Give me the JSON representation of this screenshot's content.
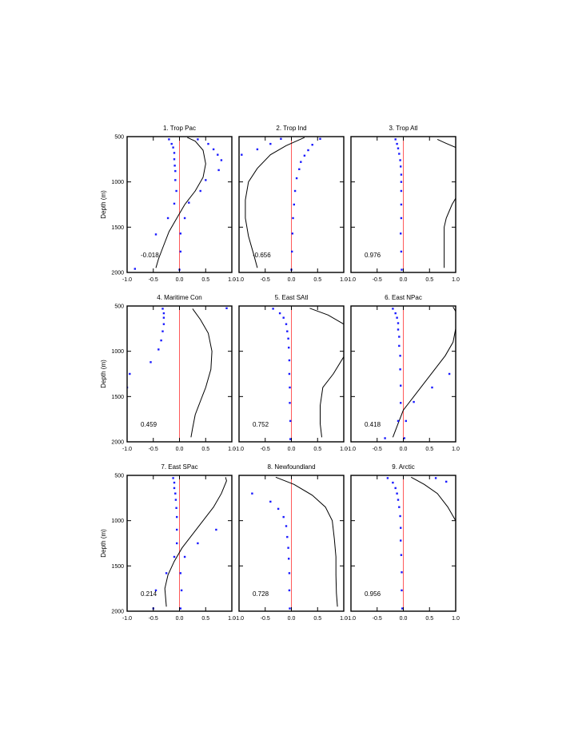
{
  "figure": {
    "ylabel": "Depth (m)",
    "colors": {
      "zero_line": "#ff5a5a",
      "dots": "#1a1aff",
      "curve": "#000000",
      "axes": "#000000"
    }
  },
  "chart_data": [
    {
      "type": "scatter",
      "title": "1. Trop Pac",
      "correlation": "-0.018",
      "xlim": [
        -1.0,
        1.0
      ],
      "ylim": [
        500,
        2000
      ],
      "xticks": [
        "-1.0",
        "-0.5",
        "0.0",
        "0.5",
        "1.0"
      ],
      "yticks": [
        "500",
        "1000",
        "1500",
        "2000"
      ],
      "dots": [
        [
          -0.2,
          530
        ],
        [
          -0.15,
          580
        ],
        [
          -0.12,
          620
        ],
        [
          -0.1,
          680
        ],
        [
          -0.1,
          750
        ],
        [
          -0.09,
          820
        ],
        [
          -0.08,
          880
        ],
        [
          -0.08,
          980
        ],
        [
          -0.06,
          1100
        ],
        [
          -0.1,
          1240
        ],
        [
          -0.22,
          1400
        ],
        [
          -0.45,
          1580
        ],
        [
          -0.85,
          1960
        ],
        [
          0.35,
          530
        ],
        [
          0.55,
          580
        ],
        [
          0.65,
          640
        ],
        [
          0.73,
          700
        ],
        [
          0.8,
          760
        ],
        [
          0.75,
          870
        ],
        [
          0.5,
          980
        ],
        [
          0.4,
          1100
        ],
        [
          0.18,
          1230
        ],
        [
          0.1,
          1400
        ],
        [
          0.02,
          1570
        ],
        [
          0.02,
          1770
        ],
        [
          0.0,
          1970
        ]
      ],
      "curve": [
        [
          0.15,
          510
        ],
        [
          0.3,
          550
        ],
        [
          0.45,
          650
        ],
        [
          0.5,
          800
        ],
        [
          0.45,
          950
        ],
        [
          0.3,
          1100
        ],
        [
          0.1,
          1250
        ],
        [
          -0.05,
          1400
        ],
        [
          -0.2,
          1550
        ],
        [
          -0.3,
          1700
        ],
        [
          -0.4,
          1850
        ],
        [
          -0.45,
          1950
        ]
      ]
    },
    {
      "type": "scatter",
      "title": "2. Trop Ind",
      "correlation": "-0.656",
      "xlim": [
        -1.0,
        1.0
      ],
      "ylim": [
        500,
        2000
      ],
      "xticks": [
        "-1.0",
        "-0.5",
        "0.0",
        "0.5",
        "1.0"
      ],
      "yticks": [
        "500",
        "1000",
        "1500",
        "2000"
      ],
      "dots": [
        [
          -0.2,
          525
        ],
        [
          -0.4,
          580
        ],
        [
          -0.65,
          640
        ],
        [
          -0.95,
          700
        ],
        [
          0.55,
          525
        ],
        [
          0.4,
          590
        ],
        [
          0.32,
          650
        ],
        [
          0.25,
          710
        ],
        [
          0.18,
          780
        ],
        [
          0.15,
          860
        ],
        [
          0.1,
          960
        ],
        [
          0.07,
          1100
        ],
        [
          0.05,
          1250
        ],
        [
          0.03,
          1400
        ],
        [
          0.02,
          1570
        ],
        [
          0.01,
          1770
        ],
        [
          0.0,
          1970
        ]
      ],
      "curve": [
        [
          0.25,
          510
        ],
        [
          -0.1,
          600
        ],
        [
          -0.4,
          700
        ],
        [
          -0.65,
          850
        ],
        [
          -0.82,
          1000
        ],
        [
          -0.88,
          1200
        ],
        [
          -0.88,
          1400
        ],
        [
          -0.82,
          1600
        ],
        [
          -0.72,
          1800
        ],
        [
          -0.65,
          1950
        ]
      ]
    },
    {
      "type": "scatter",
      "title": "3. Trop Atl",
      "correlation": "0.976",
      "xlim": [
        -1.0,
        1.0
      ],
      "ylim": [
        500,
        2000
      ],
      "xticks": [
        "-1.0",
        "-0.5",
        "0.0",
        "0.5",
        "1.0"
      ],
      "yticks": [
        "500",
        "1000",
        "1500",
        "2000"
      ],
      "dots": [
        [
          -0.15,
          530
        ],
        [
          -0.12,
          580
        ],
        [
          -0.1,
          630
        ],
        [
          -0.08,
          690
        ],
        [
          -0.06,
          760
        ],
        [
          -0.05,
          830
        ],
        [
          -0.04,
          920
        ],
        [
          -0.04,
          1000
        ],
        [
          -0.04,
          1100
        ],
        [
          -0.04,
          1250
        ],
        [
          -0.04,
          1400
        ],
        [
          -0.05,
          1570
        ],
        [
          -0.04,
          1770
        ],
        [
          -0.03,
          1970
        ]
      ],
      "curve": [
        [
          0.65,
          530
        ],
        [
          0.8,
          570
        ],
        [
          1.0,
          620
        ]
      ],
      "curve2": [
        [
          1.0,
          1180
        ],
        [
          0.93,
          1250
        ],
        [
          0.82,
          1400
        ],
        [
          0.78,
          1500
        ],
        [
          0.78,
          1700
        ],
        [
          0.78,
          1950
        ]
      ]
    },
    {
      "type": "scatter",
      "title": "4. Maritime Con",
      "correlation": "0.459",
      "xlim": [
        -1.0,
        1.0
      ],
      "ylim": [
        500,
        2000
      ],
      "xticks": [
        "-1.0",
        "-0.5",
        "0.0",
        "0.5",
        "1.0"
      ],
      "yticks": [
        "500",
        "1000",
        "1500",
        "2000"
      ],
      "dots": [
        [
          -0.32,
          530
        ],
        [
          -0.3,
          580
        ],
        [
          -0.3,
          630
        ],
        [
          -0.3,
          700
        ],
        [
          -0.32,
          780
        ],
        [
          -0.35,
          880
        ],
        [
          -0.4,
          980
        ],
        [
          -0.55,
          1120
        ],
        [
          -0.95,
          1250
        ],
        [
          -1.0,
          1400
        ],
        [
          0.9,
          525
        ]
      ],
      "curve": [
        [
          0.25,
          530
        ],
        [
          0.4,
          650
        ],
        [
          0.55,
          800
        ],
        [
          0.62,
          1000
        ],
        [
          0.6,
          1200
        ],
        [
          0.5,
          1400
        ],
        [
          0.4,
          1550
        ],
        [
          0.3,
          1700
        ],
        [
          0.25,
          1850
        ],
        [
          0.22,
          1950
        ]
      ]
    },
    {
      "type": "scatter",
      "title": "5. East SAtl",
      "correlation": "0.752",
      "xlim": [
        -1.0,
        1.0
      ],
      "ylim": [
        500,
        2000
      ],
      "xticks": [
        "-1.0",
        "-0.5",
        "0.0",
        "0.5",
        "1.0"
      ],
      "yticks": [
        "500",
        "1000",
        "1500",
        "2000"
      ],
      "dots": [
        [
          -0.35,
          530
        ],
        [
          -0.22,
          580
        ],
        [
          -0.15,
          630
        ],
        [
          -0.1,
          700
        ],
        [
          -0.08,
          780
        ],
        [
          -0.06,
          860
        ],
        [
          -0.05,
          960
        ],
        [
          -0.04,
          1100
        ],
        [
          -0.04,
          1250
        ],
        [
          -0.03,
          1400
        ],
        [
          -0.03,
          1570
        ],
        [
          -0.02,
          1770
        ],
        [
          -0.02,
          1970
        ]
      ],
      "curve": [
        [
          0.35,
          525
        ],
        [
          0.7,
          600
        ],
        [
          1.0,
          700
        ]
      ],
      "curve2": [
        [
          1.0,
          1060
        ],
        [
          0.8,
          1250
        ],
        [
          0.6,
          1400
        ],
        [
          0.55,
          1600
        ],
        [
          0.55,
          1800
        ],
        [
          0.58,
          1950
        ]
      ]
    },
    {
      "type": "scatter",
      "title": "6. East NPac",
      "correlation": "0.418",
      "xlim": [
        -1.0,
        1.0
      ],
      "ylim": [
        500,
        2000
      ],
      "xticks": [
        "-1.0",
        "-0.5",
        "0.0",
        "0.5",
        "1.0"
      ],
      "yticks": [
        "500",
        "1000",
        "1500",
        "2000"
      ],
      "dots": [
        [
          -0.2,
          530
        ],
        [
          -0.15,
          580
        ],
        [
          -0.12,
          630
        ],
        [
          -0.1,
          690
        ],
        [
          -0.1,
          760
        ],
        [
          -0.08,
          840
        ],
        [
          -0.08,
          940
        ],
        [
          -0.06,
          1050
        ],
        [
          -0.06,
          1200
        ],
        [
          -0.05,
          1380
        ],
        [
          -0.05,
          1570
        ],
        [
          -0.1,
          1770
        ],
        [
          -0.35,
          1960
        ],
        [
          0.88,
          1250
        ],
        [
          0.55,
          1400
        ],
        [
          0.2,
          1560
        ],
        [
          0.05,
          1770
        ],
        [
          0.02,
          1960
        ]
      ],
      "curve": [
        [
          0.95,
          510
        ],
        [
          1.0,
          560
        ],
        [
          1.0,
          750
        ],
        [
          0.95,
          900
        ],
        [
          0.8,
          1050
        ],
        [
          0.6,
          1200
        ],
        [
          0.4,
          1350
        ],
        [
          0.2,
          1500
        ],
        [
          0.0,
          1650
        ],
        [
          -0.1,
          1800
        ],
        [
          -0.2,
          1950
        ]
      ]
    },
    {
      "type": "scatter",
      "title": "7. East SPac",
      "correlation": "0.214",
      "xlim": [
        -1.0,
        1.0
      ],
      "ylim": [
        500,
        2000
      ],
      "xticks": [
        "-1.0",
        "-0.5",
        "0.0",
        "0.5",
        "1.0"
      ],
      "yticks": [
        "500",
        "1000",
        "1500",
        "2000"
      ],
      "dots": [
        [
          -0.12,
          530
        ],
        [
          -0.1,
          580
        ],
        [
          -0.1,
          640
        ],
        [
          -0.08,
          700
        ],
        [
          -0.07,
          770
        ],
        [
          -0.06,
          860
        ],
        [
          -0.05,
          960
        ],
        [
          -0.05,
          1100
        ],
        [
          -0.05,
          1250
        ],
        [
          -0.1,
          1400
        ],
        [
          -0.25,
          1580
        ],
        [
          -0.45,
          1770
        ],
        [
          -0.5,
          1970
        ],
        [
          0.7,
          1100
        ],
        [
          0.35,
          1250
        ],
        [
          0.1,
          1400
        ],
        [
          0.02,
          1580
        ],
        [
          0.04,
          1770
        ],
        [
          0.02,
          1970
        ]
      ],
      "curve": [
        [
          0.88,
          520
        ],
        [
          0.9,
          560
        ],
        [
          0.8,
          700
        ],
        [
          0.65,
          850
        ],
        [
          0.45,
          1000
        ],
        [
          0.25,
          1150
        ],
        [
          0.05,
          1300
        ],
        [
          -0.1,
          1450
        ],
        [
          -0.22,
          1600
        ],
        [
          -0.28,
          1750
        ],
        [
          -0.25,
          1950
        ]
      ]
    },
    {
      "type": "scatter",
      "title": "8. Newfoundland",
      "correlation": "0.728",
      "xlim": [
        -1.0,
        1.0
      ],
      "ylim": [
        500,
        2000
      ],
      "xticks": [
        "-1.0",
        "-0.5",
        "0.0",
        "0.5",
        "1.0"
      ],
      "yticks": [
        "500",
        "1000",
        "1500",
        "2000"
      ],
      "dots": [
        [
          -0.75,
          700
        ],
        [
          -0.4,
          790
        ],
        [
          -0.25,
          870
        ],
        [
          -0.15,
          960
        ],
        [
          -0.1,
          1060
        ],
        [
          -0.08,
          1180
        ],
        [
          -0.06,
          1300
        ],
        [
          -0.05,
          1420
        ],
        [
          -0.04,
          1580
        ],
        [
          -0.04,
          1770
        ],
        [
          -0.03,
          1970
        ]
      ],
      "curve": [
        [
          -0.3,
          520
        ],
        [
          0.05,
          600
        ],
        [
          0.4,
          720
        ],
        [
          0.65,
          850
        ],
        [
          0.78,
          1000
        ],
        [
          0.82,
          1200
        ],
        [
          0.85,
          1400
        ],
        [
          0.85,
          1600
        ],
        [
          0.86,
          1800
        ],
        [
          0.88,
          1950
        ]
      ]
    },
    {
      "type": "scatter",
      "title": "9. Arctic",
      "correlation": "0.956",
      "xlim": [
        -1.0,
        1.0
      ],
      "ylim": [
        500,
        2000
      ],
      "xticks": [
        "-1.0",
        "-0.5",
        "0.0",
        "0.5",
        "1.0"
      ],
      "yticks": [
        "500",
        "1000",
        "1500",
        "2000"
      ],
      "dots": [
        [
          -0.3,
          530
        ],
        [
          -0.2,
          580
        ],
        [
          -0.15,
          640
        ],
        [
          -0.12,
          700
        ],
        [
          -0.1,
          770
        ],
        [
          -0.08,
          850
        ],
        [
          -0.06,
          950
        ],
        [
          -0.05,
          1080
        ],
        [
          -0.05,
          1220
        ],
        [
          -0.04,
          1380
        ],
        [
          -0.03,
          1570
        ],
        [
          -0.03,
          1770
        ],
        [
          -0.02,
          1970
        ],
        [
          0.62,
          530
        ],
        [
          0.82,
          570
        ]
      ],
      "curve": [
        [
          0.15,
          520
        ],
        [
          0.4,
          600
        ],
        [
          0.65,
          700
        ],
        [
          0.85,
          850
        ],
        [
          1.0,
          1000
        ]
      ]
    }
  ]
}
